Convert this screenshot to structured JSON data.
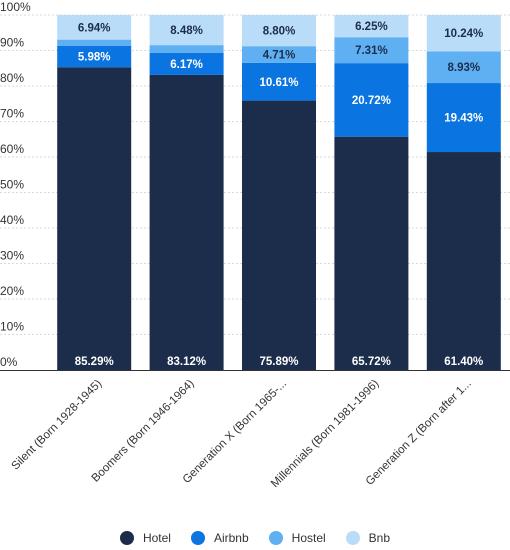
{
  "chart_data": {
    "type": "bar",
    "stacked": true,
    "categories": [
      "Silent (Born 1928-1945)",
      "Boomers (Born 1946-1964)",
      "Generation X (Born 1965-...",
      "Millennials (Born 1981-1996)",
      "Generation Z (Born after 1..."
    ],
    "series": [
      {
        "name": "Hotel",
        "color": "#1b2d4a",
        "label_color": "#ffffff",
        "values": [
          85.29,
          83.12,
          75.89,
          65.72,
          61.4
        ],
        "labels": [
          "85.29%",
          "83.12%",
          "75.89%",
          "65.72%",
          "61.40%"
        ]
      },
      {
        "name": "Airbnb",
        "color": "#0a74e0",
        "label_color": "#ffffff",
        "values": [
          5.98,
          6.17,
          10.61,
          20.72,
          19.43
        ],
        "labels": [
          "5.98%",
          "6.17%",
          "10.61%",
          "20.72%",
          "19.43%"
        ]
      },
      {
        "name": "Hostel",
        "color": "#5fb0f2",
        "label_color": "#1b2d4a",
        "values": [
          1.79,
          2.23,
          4.71,
          7.31,
          8.93
        ],
        "labels": [
          "",
          "",
          "4.71%",
          "7.31%",
          "8.93%"
        ]
      },
      {
        "name": "Bnb",
        "color": "#b9dcf9",
        "label_color": "#1b2d4a",
        "values": [
          6.94,
          8.48,
          8.8,
          6.25,
          10.24
        ],
        "labels": [
          "6.94%",
          "8.48%",
          "8.80%",
          "6.25%",
          "10.24%"
        ]
      }
    ],
    "ylim": [
      0,
      100
    ],
    "yticks": [
      0,
      10,
      20,
      30,
      40,
      50,
      60,
      70,
      80,
      90,
      100
    ],
    "ytick_labels": [
      "0%",
      "10%",
      "20%",
      "30%",
      "40%",
      "50%",
      "60%",
      "70%",
      "80%",
      "90%",
      "100%"
    ],
    "title": "",
    "xlabel": "",
    "ylabel": "",
    "grid": "horizontal",
    "legend_position": "bottom-center"
  }
}
